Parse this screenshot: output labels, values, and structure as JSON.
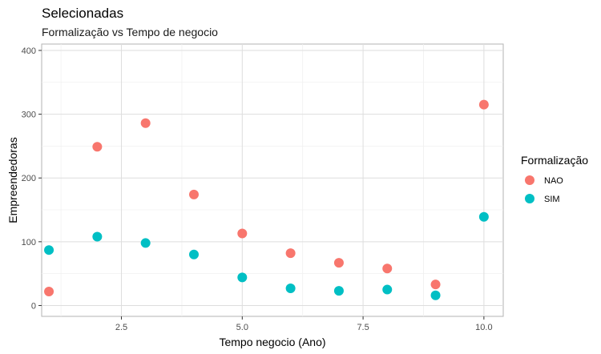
{
  "chart_data": {
    "type": "scatter",
    "title": "Selecionadas",
    "subtitle": "Formalização vs Tempo de negocio",
    "xlabel": "Tempo negocio (Ano)",
    "ylabel": "Empreendedoras",
    "xlim": [
      0.85,
      10.4
    ],
    "ylim": [
      -17,
      410
    ],
    "x_ticks": [
      2.5,
      5.0,
      7.5,
      10.0
    ],
    "x_tick_labels": [
      "2.5",
      "5.0",
      "7.5",
      "10.0"
    ],
    "y_ticks": [
      0,
      100,
      200,
      300,
      400
    ],
    "y_tick_labels": [
      "0",
      "100",
      "200",
      "300",
      "400"
    ],
    "grid": true,
    "legend": {
      "title": "Formalização",
      "placement": "right"
    },
    "series": [
      {
        "name": "NAO",
        "color": "#F8766D",
        "points": [
          {
            "x": 1,
            "y": 22
          },
          {
            "x": 2,
            "y": 249
          },
          {
            "x": 3,
            "y": 286
          },
          {
            "x": 4,
            "y": 174
          },
          {
            "x": 5,
            "y": 113
          },
          {
            "x": 6,
            "y": 82
          },
          {
            "x": 7,
            "y": 67
          },
          {
            "x": 8,
            "y": 58
          },
          {
            "x": 9,
            "y": 33
          },
          {
            "x": 10,
            "y": 315
          }
        ]
      },
      {
        "name": "SIM",
        "color": "#00BFC4",
        "points": [
          {
            "x": 1,
            "y": 87
          },
          {
            "x": 2,
            "y": 108
          },
          {
            "x": 3,
            "y": 98
          },
          {
            "x": 4,
            "y": 80
          },
          {
            "x": 5,
            "y": 44
          },
          {
            "x": 6,
            "y": 27
          },
          {
            "x": 7,
            "y": 23
          },
          {
            "x": 8,
            "y": 25
          },
          {
            "x": 9,
            "y": 16
          },
          {
            "x": 10,
            "y": 139
          }
        ]
      }
    ]
  }
}
